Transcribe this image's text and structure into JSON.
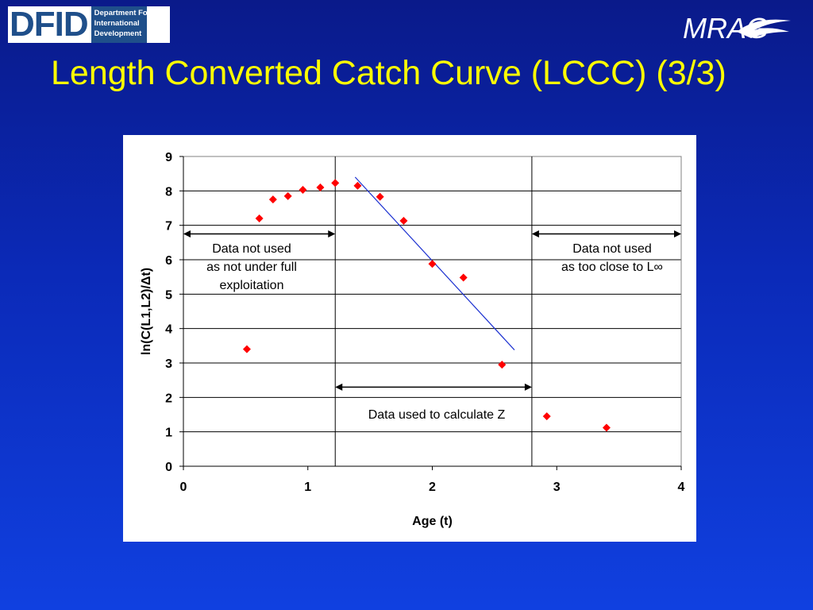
{
  "header": {
    "dfid_logo": {
      "letters": "DFID",
      "line1": "Department For",
      "line2": "International",
      "line3": "Development"
    },
    "mrag_logo_text": "MRAG",
    "title": "Length Converted Catch Curve (LCCC) (3/3)"
  },
  "annotations": {
    "left_line1": "Data not used",
    "left_line2": "as not under full",
    "left_line3": "exploitation",
    "right_line1": "Data not used",
    "right_line2": "as too close to L∞",
    "middle": "Data used to calculate Z"
  },
  "chart_data": {
    "type": "scatter",
    "xlabel": "Age (t)",
    "ylabel": "ln(C(L1,L2)/Δt)",
    "xlim": [
      0,
      4
    ],
    "ylim": [
      0,
      9
    ],
    "xticks": [
      0,
      1,
      2,
      3,
      4
    ],
    "yticks": [
      0,
      1,
      2,
      3,
      4,
      5,
      6,
      7,
      8,
      9
    ],
    "grid": "horizontal",
    "series": [
      {
        "points": [
          [
            0.51,
            3.4
          ],
          [
            0.61,
            7.2
          ],
          [
            0.72,
            7.75
          ],
          [
            0.84,
            7.85
          ],
          [
            0.96,
            8.03
          ],
          [
            1.1,
            8.1
          ],
          [
            1.22,
            8.23
          ],
          [
            1.4,
            8.15
          ],
          [
            1.58,
            7.83
          ],
          [
            1.77,
            7.13
          ],
          [
            2.0,
            5.88
          ],
          [
            2.25,
            5.48
          ],
          [
            2.56,
            2.95
          ],
          [
            2.92,
            1.45
          ],
          [
            3.4,
            1.12
          ]
        ],
        "color": "#ff0000",
        "marker": "diamond"
      }
    ],
    "regression_line": {
      "x": [
        1.38,
        2.66
      ],
      "y": [
        8.4,
        3.38
      ],
      "color": "#1a2fd0"
    },
    "vertical_dividers": [
      1.22,
      2.8
    ],
    "arrows": [
      {
        "x": [
          0,
          1.22
        ],
        "y": 6.75
      },
      {
        "x": [
          2.8,
          4
        ],
        "y": 6.75
      },
      {
        "x": [
          1.22,
          2.8
        ],
        "y": 2.3
      }
    ]
  }
}
